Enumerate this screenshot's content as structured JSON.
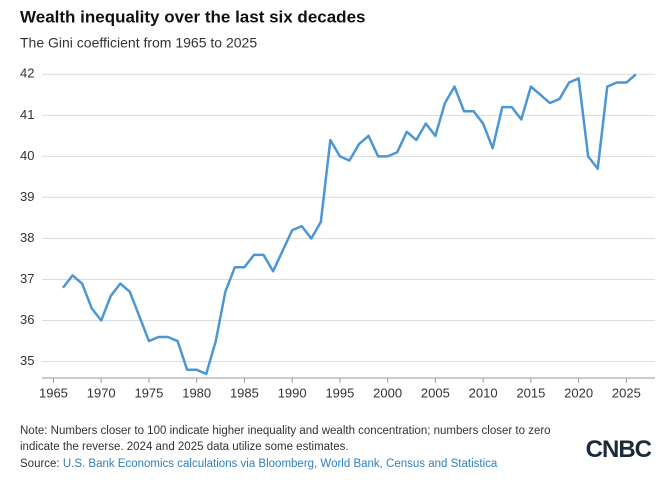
{
  "chart_data": {
    "type": "line",
    "title": "Wealth inequality over the last six decades",
    "subtitle": "The Gini coefficient from 1965 to 2025",
    "x": [
      1966,
      1967,
      1968,
      1969,
      1970,
      1971,
      1972,
      1973,
      1974,
      1975,
      1976,
      1977,
      1978,
      1979,
      1980,
      1981,
      1982,
      1983,
      1984,
      1985,
      1986,
      1987,
      1988,
      1989,
      1990,
      1991,
      1992,
      1993,
      1994,
      1995,
      1996,
      1997,
      1998,
      1999,
      2000,
      2001,
      2002,
      2003,
      2004,
      2005,
      2006,
      2007,
      2008,
      2009,
      2010,
      2011,
      2012,
      2013,
      2014,
      2015,
      2016,
      2017,
      2018,
      2019,
      2020,
      2021,
      2022,
      2023,
      2024,
      2025,
      2026
    ],
    "values": [
      36.8,
      37.1,
      36.9,
      36.3,
      36.0,
      36.6,
      36.9,
      36.7,
      36.1,
      35.5,
      35.6,
      35.6,
      35.5,
      34.8,
      34.8,
      34.7,
      35.5,
      36.7,
      37.3,
      37.3,
      37.6,
      37.6,
      37.2,
      37.7,
      38.2,
      38.3,
      38.0,
      38.4,
      40.4,
      40.0,
      39.9,
      40.3,
      40.5,
      40.0,
      40.0,
      40.1,
      40.6,
      40.4,
      40.8,
      40.5,
      41.3,
      41.7,
      41.1,
      41.1,
      40.8,
      40.2,
      41.2,
      41.2,
      40.9,
      41.7,
      41.5,
      41.3,
      41.4,
      41.8,
      41.9,
      40.0,
      39.7,
      41.7,
      41.8,
      41.8,
      42.0
    ],
    "color": "#4c97d3",
    "xlim": [
      1963.8,
      2028
    ],
    "xticks": [
      1965,
      1970,
      1975,
      1980,
      1985,
      1990,
      1995,
      2000,
      2005,
      2010,
      2015,
      2020,
      2025
    ],
    "ylim": [
      34.6,
      42.3
    ],
    "yticks": [
      35,
      36,
      37,
      38,
      39,
      40,
      41,
      42
    ],
    "grid": true,
    "note": "Note: Numbers closer to 100 indicate higher inequality and wealth concentration; numbers closer to zero indicate the reverse. 2024 and 2025 data utilize some estimates.",
    "source_label": "Source:",
    "source": "U.S. Bank Economics calculations via Bloomberg, World Bank, Census and Statistica",
    "logo": "CNBC"
  }
}
